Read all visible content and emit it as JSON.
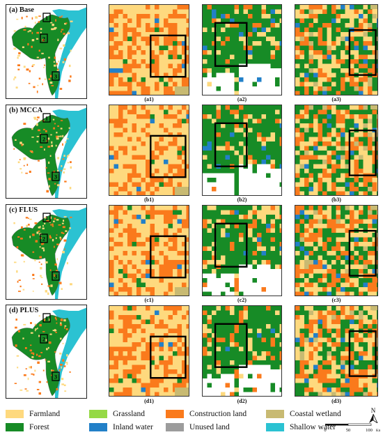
{
  "overview_labels": [
    "(a) Base",
    "(b) MCCA",
    "(c) FLUS",
    "(d) PLUS"
  ],
  "zoom_box_numbers": [
    "1",
    "2",
    "3"
  ],
  "panel_captions": [
    [
      "(a1)",
      "(a2)",
      "(a3)"
    ],
    [
      "(b1)",
      "(b2)",
      "(b3)"
    ],
    [
      "(c1)",
      "(c2)",
      "(c3)"
    ],
    [
      "(d1)",
      "(d2)",
      "(d3)"
    ]
  ],
  "legend": [
    {
      "label": "Farmland",
      "color": "#FED97E"
    },
    {
      "label": "Grassland",
      "color": "#95D945"
    },
    {
      "label": "Construction land",
      "color": "#FA7A1C"
    },
    {
      "label": "Coastal wetland",
      "color": "#C8BA72"
    },
    {
      "label": "Forest",
      "color": "#178B26"
    },
    {
      "label": "Inland water",
      "color": "#2280C8"
    },
    {
      "label": "Unused land",
      "color": "#9C9C9C"
    },
    {
      "label": "Shallow water",
      "color": "#2BC2D2"
    }
  ],
  "north_arrow": {
    "label": "N"
  },
  "scale_bar": {
    "ticks": [
      "0",
      "50",
      "100"
    ],
    "unit": "Km"
  }
}
